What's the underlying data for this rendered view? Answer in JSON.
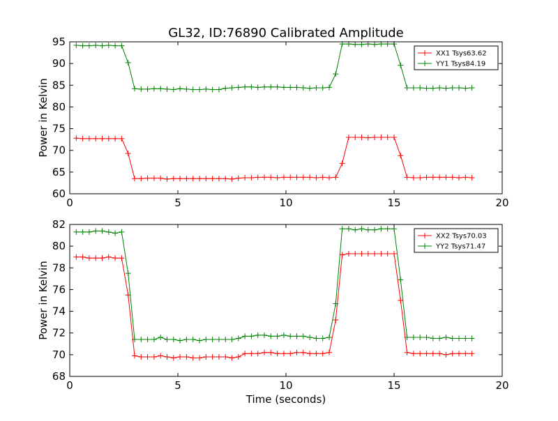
{
  "title": "GL32, ID:76890 Calibrated Amplitude",
  "xlabel": "Time (seconds)",
  "chart_data": [
    {
      "type": "line",
      "xlabel": "",
      "ylabel": "Power in Kelvin",
      "xlim": [
        0,
        20
      ],
      "ylim": [
        60,
        95
      ],
      "xticks": [
        0,
        5,
        10,
        15,
        20
      ],
      "yticks": [
        60,
        65,
        70,
        75,
        80,
        85,
        90,
        95
      ],
      "grid": false,
      "legend_position": "top-right",
      "x": [
        0.3,
        0.6,
        0.9,
        1.2,
        1.5,
        1.8,
        2.1,
        2.4,
        2.7,
        3.0,
        3.3,
        3.6,
        3.9,
        4.2,
        4.5,
        4.8,
        5.1,
        5.4,
        5.7,
        6.0,
        6.3,
        6.6,
        6.9,
        7.2,
        7.5,
        7.8,
        8.1,
        8.4,
        8.7,
        9.0,
        9.3,
        9.6,
        9.9,
        10.2,
        10.5,
        10.8,
        11.1,
        11.4,
        11.7,
        12.0,
        12.3,
        12.6,
        12.9,
        13.2,
        13.5,
        13.8,
        14.1,
        14.4,
        14.7,
        15.0,
        15.3,
        15.6,
        15.9,
        16.2,
        16.5,
        16.8,
        17.1,
        17.4,
        17.7,
        18.0,
        18.3,
        18.6
      ],
      "series": [
        {
          "name": "XX1 Tsys63.62",
          "color": "#ff0000",
          "values": [
            72.8,
            72.7,
            72.7,
            72.7,
            72.7,
            72.7,
            72.7,
            72.7,
            69.3,
            63.5,
            63.5,
            63.6,
            63.6,
            63.6,
            63.4,
            63.5,
            63.5,
            63.5,
            63.5,
            63.5,
            63.5,
            63.5,
            63.5,
            63.5,
            63.4,
            63.6,
            63.7,
            63.7,
            63.8,
            63.8,
            63.8,
            63.7,
            63.8,
            63.8,
            63.8,
            63.8,
            63.8,
            63.7,
            63.8,
            63.7,
            63.8,
            67.0,
            73.0,
            73.0,
            73.0,
            72.9,
            73.0,
            73.0,
            73.0,
            73.0,
            68.8,
            63.8,
            63.7,
            63.7,
            63.8,
            63.8,
            63.8,
            63.8,
            63.8,
            63.7,
            63.8,
            63.7
          ]
        },
        {
          "name": "YY1 Tsys84.19",
          "color": "#008000",
          "values": [
            94.2,
            94.1,
            94.1,
            94.2,
            94.1,
            94.2,
            94.1,
            94.1,
            90.2,
            84.2,
            84.1,
            84.1,
            84.2,
            84.2,
            84.1,
            84.0,
            84.2,
            84.1,
            84.0,
            84.0,
            84.1,
            84.0,
            84.0,
            84.3,
            84.4,
            84.5,
            84.6,
            84.6,
            84.5,
            84.6,
            84.6,
            84.6,
            84.5,
            84.5,
            84.5,
            84.4,
            84.3,
            84.4,
            84.4,
            84.5,
            87.6,
            94.5,
            94.5,
            94.4,
            94.4,
            94.5,
            94.4,
            94.5,
            94.5,
            94.5,
            89.6,
            84.4,
            84.4,
            84.4,
            84.3,
            84.3,
            84.4,
            84.3,
            84.4,
            84.4,
            84.3,
            84.4
          ]
        }
      ]
    },
    {
      "type": "line",
      "xlabel": "Time (seconds)",
      "ylabel": "Power in Kelvin",
      "xlim": [
        0,
        20
      ],
      "ylim": [
        68,
        82
      ],
      "xticks": [
        0,
        5,
        10,
        15,
        20
      ],
      "yticks": [
        68,
        70,
        72,
        74,
        76,
        78,
        80,
        82
      ],
      "grid": false,
      "legend_position": "top-right",
      "x": [
        0.3,
        0.6,
        0.9,
        1.2,
        1.5,
        1.8,
        2.1,
        2.4,
        2.7,
        3.0,
        3.3,
        3.6,
        3.9,
        4.2,
        4.5,
        4.8,
        5.1,
        5.4,
        5.7,
        6.0,
        6.3,
        6.6,
        6.9,
        7.2,
        7.5,
        7.8,
        8.1,
        8.4,
        8.7,
        9.0,
        9.3,
        9.6,
        9.9,
        10.2,
        10.5,
        10.8,
        11.1,
        11.4,
        11.7,
        12.0,
        12.3,
        12.6,
        12.9,
        13.2,
        13.5,
        13.8,
        14.1,
        14.4,
        14.7,
        15.0,
        15.3,
        15.6,
        15.9,
        16.2,
        16.5,
        16.8,
        17.1,
        17.4,
        17.7,
        18.0,
        18.3,
        18.6
      ],
      "series": [
        {
          "name": "XX2 Tsys70.03",
          "color": "#ff0000",
          "values": [
            79.0,
            79.0,
            78.9,
            78.9,
            78.9,
            79.0,
            78.9,
            78.9,
            75.5,
            69.9,
            69.8,
            69.8,
            69.8,
            69.9,
            69.8,
            69.7,
            69.8,
            69.8,
            69.7,
            69.7,
            69.8,
            69.8,
            69.8,
            69.8,
            69.7,
            69.8,
            70.1,
            70.1,
            70.1,
            70.2,
            70.2,
            70.1,
            70.1,
            70.1,
            70.2,
            70.2,
            70.1,
            70.1,
            70.1,
            70.2,
            73.2,
            79.2,
            79.3,
            79.3,
            79.3,
            79.3,
            79.3,
            79.3,
            79.3,
            79.3,
            75.0,
            70.2,
            70.1,
            70.1,
            70.1,
            70.1,
            70.1,
            70.0,
            70.1,
            70.1,
            70.1,
            70.1
          ]
        },
        {
          "name": "YY2 Tsys71.47",
          "color": "#008000",
          "values": [
            81.3,
            81.3,
            81.3,
            81.4,
            81.4,
            81.3,
            81.2,
            81.3,
            77.5,
            71.4,
            71.4,
            71.4,
            71.4,
            71.6,
            71.4,
            71.4,
            71.3,
            71.4,
            71.4,
            71.3,
            71.4,
            71.4,
            71.4,
            71.4,
            71.4,
            71.5,
            71.7,
            71.7,
            71.8,
            71.8,
            71.7,
            71.7,
            71.8,
            71.7,
            71.7,
            71.7,
            71.6,
            71.5,
            71.5,
            71.6,
            74.7,
            81.6,
            81.6,
            81.5,
            81.6,
            81.5,
            81.5,
            81.6,
            81.6,
            81.6,
            76.9,
            71.6,
            71.6,
            71.6,
            71.6,
            71.5,
            71.5,
            71.6,
            71.5,
            71.5,
            71.5,
            71.5
          ]
        }
      ]
    }
  ]
}
